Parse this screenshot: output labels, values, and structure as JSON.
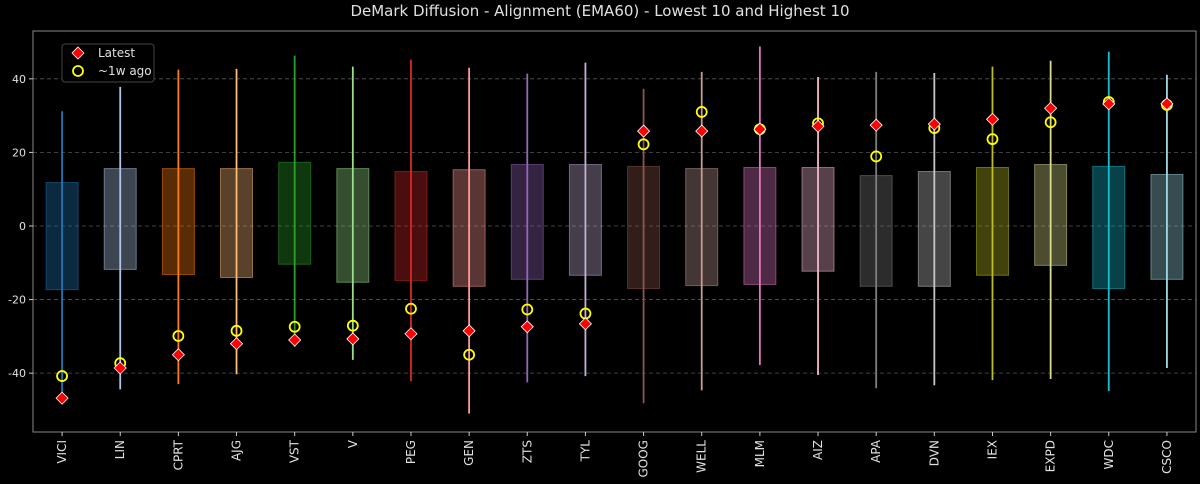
{
  "chart_data": {
    "type": "box-range",
    "title": "DeMark Diffusion - Alignment (EMA60) - Lowest 10 and Highest 10",
    "xlabel": "",
    "ylabel": "",
    "ylim": [
      -56,
      53
    ],
    "yticks": [
      -40,
      -20,
      0,
      20,
      40
    ],
    "grid": "horizontal dashed",
    "legend_placement": "top-left",
    "legend": [
      {
        "label": "Latest",
        "marker": "diamond",
        "color": "#ff0000"
      },
      {
        "label": "~1w ago",
        "marker": "circle-open",
        "color": "#ffff00"
      }
    ],
    "categories": [
      "VICI",
      "LIN",
      "CPRT",
      "AJG",
      "VST",
      "V",
      "PEG",
      "GEN",
      "ZTS",
      "TYL",
      "GOOG",
      "WELL",
      "MLM",
      "AIZ",
      "APA",
      "DVN",
      "IEX",
      "EXPD",
      "WDC",
      "CSCO"
    ],
    "colors": [
      "#1f77b4",
      "#aec7e8",
      "#ff7f0e",
      "#ffbb78",
      "#2ca02c",
      "#98df8a",
      "#d62728",
      "#ff9896",
      "#9467bd",
      "#c5b0d5",
      "#8c564b",
      "#c49c94",
      "#e377c2",
      "#f7b6d2",
      "#7f7f7f",
      "#c7c7c7",
      "#bcbd22",
      "#dbdb8d",
      "#17becf",
      "#9edae5"
    ],
    "range_min": [
      -45.5,
      -44.4,
      -43,
      -40.3,
      -32.9,
      -36.4,
      -42.2,
      -51,
      -42.5,
      -40.8,
      -48.2,
      -44.7,
      -37.8,
      -40.5,
      -44.1,
      -43.3,
      -41.9,
      -41.6,
      -44.9,
      -38.6
    ],
    "range_max": [
      31.2,
      37.8,
      42.5,
      42.7,
      46.3,
      43.3,
      45.2,
      43,
      41.4,
      44.4,
      37.3,
      41.9,
      48.8,
      40.5,
      41.9,
      41.6,
      43.3,
      44.9,
      47.4,
      41.1
    ],
    "box_low": [
      -17.3,
      -11.8,
      -13.2,
      -14,
      -10.4,
      -15.3,
      -14.8,
      -16.4,
      -14.5,
      -13.4,
      -17,
      -16.2,
      -15.9,
      -12.3,
      -16.4,
      -16.4,
      -13.4,
      -10.7,
      -17,
      -14.5
    ],
    "box_high": [
      11.8,
      15.6,
      15.6,
      15.6,
      17.3,
      15.6,
      14.8,
      15.3,
      16.7,
      16.7,
      16.2,
      15.6,
      15.9,
      15.9,
      13.7,
      14.8,
      15.9,
      16.7,
      16.2,
      14
    ],
    "latest": [
      -46.8,
      -38.6,
      -35,
      -32,
      -31,
      -30.7,
      -29.3,
      -28.5,
      -27.4,
      -26.6,
      25.8,
      25.8,
      26.3,
      27.1,
      27.4,
      27.7,
      29,
      32,
      33.2,
      33.2
    ],
    "week_ago": [
      -40.8,
      -37.3,
      -29.9,
      -28.5,
      -27.4,
      -27.1,
      -22.5,
      -35,
      -22.7,
      -23.8,
      22.2,
      31,
      26.3,
      27.9,
      18.9,
      26.6,
      23.6,
      28.2,
      33.7,
      32.9
    ]
  }
}
